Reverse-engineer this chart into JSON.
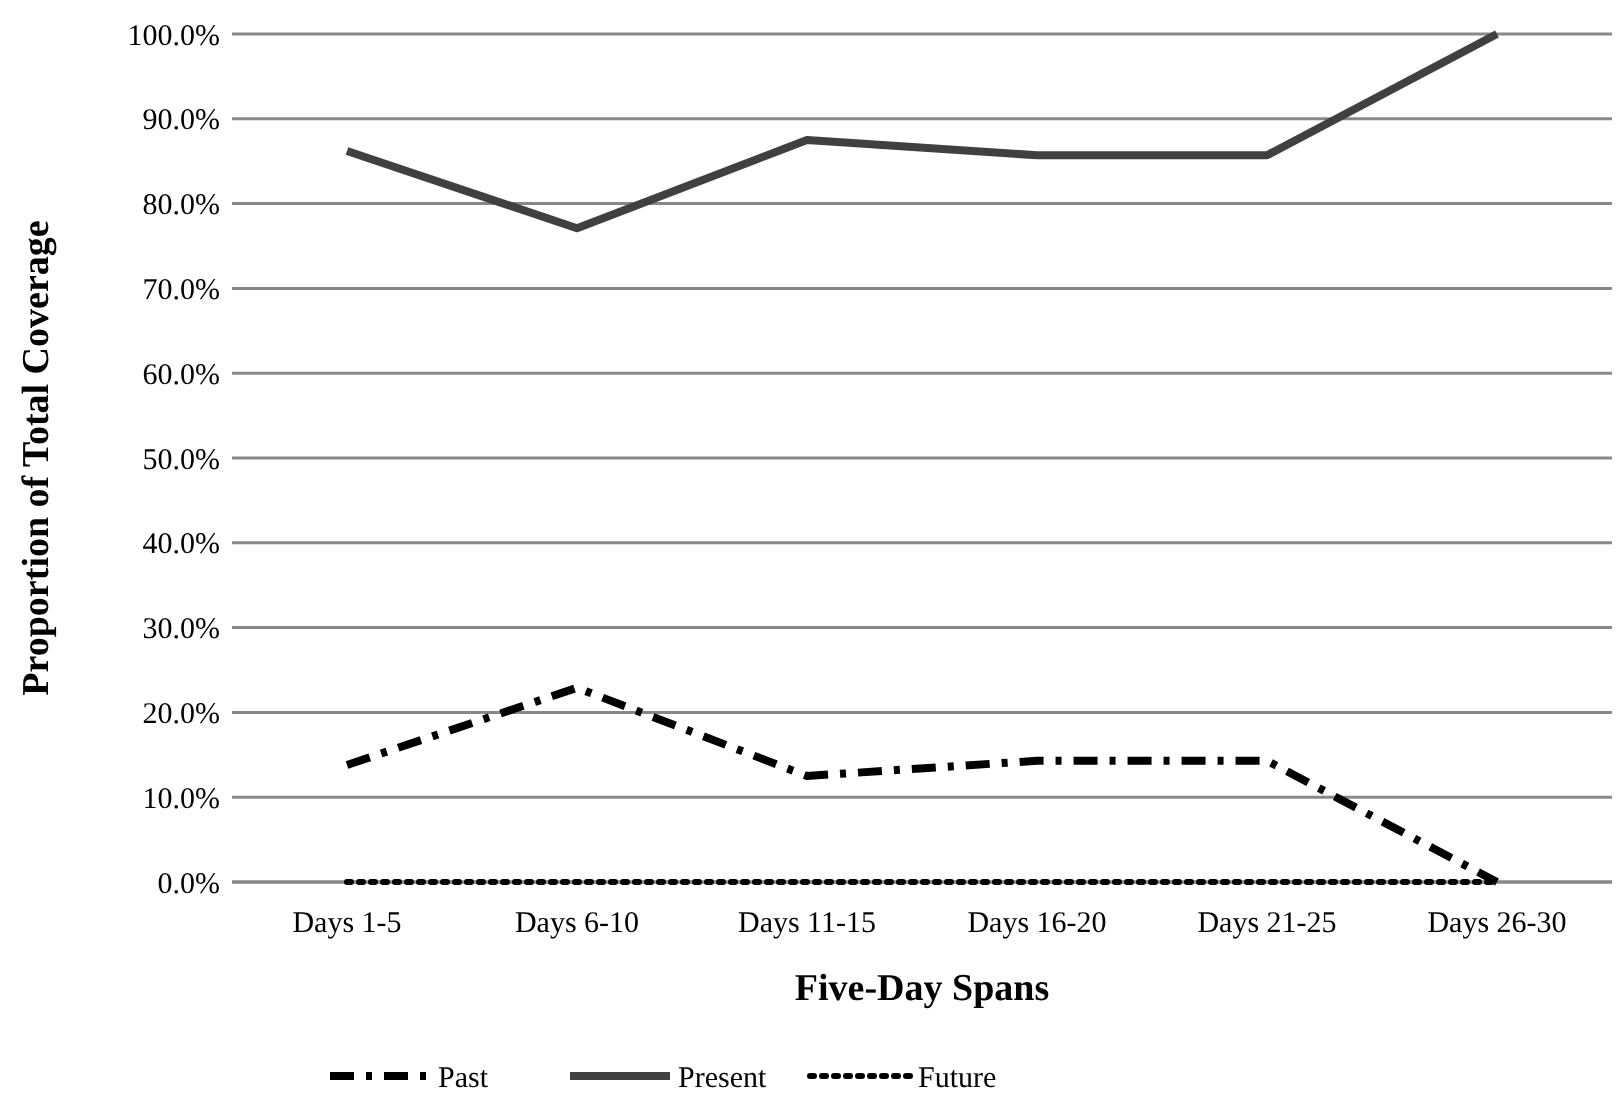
{
  "chart_data": {
    "type": "line",
    "xlabel": "Five-Day Spans",
    "ylabel": "Proportion of Total Coverage",
    "categories": [
      "Days 1-5",
      "Days 6-10",
      "Days 11-15",
      "Days 16-20",
      "Days 21-25",
      "Days 26-30"
    ],
    "series": [
      {
        "name": "Past",
        "color": "#000000",
        "line_style": "dashdot",
        "values": [
          13.8,
          22.9,
          12.5,
          14.3,
          14.3,
          0
        ]
      },
      {
        "name": "Present",
        "color": "#404040",
        "line_style": "solid",
        "values": [
          86.2,
          77.1,
          87.5,
          85.7,
          85.7,
          100
        ]
      },
      {
        "name": "Future",
        "color": "#000000",
        "line_style": "dotted",
        "values": [
          0,
          0,
          0,
          0,
          0,
          0
        ]
      }
    ],
    "ylim": [
      0,
      100
    ],
    "yticks": [
      {
        "value": 0,
        "label": "0.0%"
      },
      {
        "value": 10,
        "label": "10.0%"
      },
      {
        "value": 20,
        "label": "20.0%"
      },
      {
        "value": 30,
        "label": "30.0%"
      },
      {
        "value": 40,
        "label": "40.0%"
      },
      {
        "value": 50,
        "label": "50.0%"
      },
      {
        "value": 60,
        "label": "60.0%"
      },
      {
        "value": 70,
        "label": "70.0%"
      },
      {
        "value": 80,
        "label": "80.0%"
      },
      {
        "value": 90,
        "label": "90.0%"
      },
      {
        "value": 100,
        "label": "100.0%"
      }
    ],
    "grid": "y",
    "legend": "bottom",
    "marker": "none"
  }
}
